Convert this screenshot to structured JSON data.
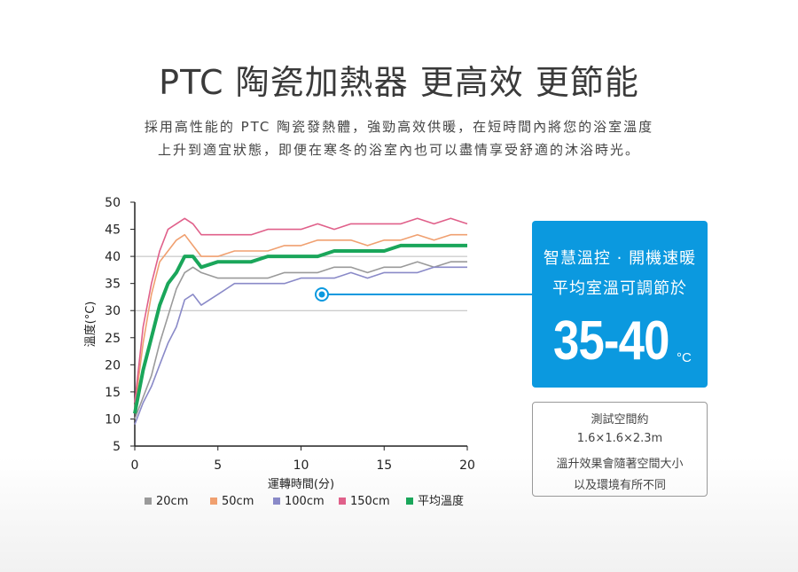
{
  "header": {
    "title": "PTC 陶瓷加熱器 更高效 更節能",
    "subtitle_line1": "採用高性能的 PTC 陶瓷發熱體，強勁高效供暖，在短時間內將您的浴室溫度",
    "subtitle_line2": "上升到適宜狀態，即便在寒冬的浴室內也可以盡情享受舒適的沐浴時光。"
  },
  "callout": {
    "line1": "智慧溫控 · 開機速暖",
    "line2": "平均室溫可調節於",
    "range": "35-40",
    "unit": "°C"
  },
  "test_info": {
    "line1": "測試空間約",
    "line2": "1.6×1.6×2.3m",
    "line3": "溫升效果會隨著空間大小",
    "line4": "以及環境有所不同"
  },
  "chart_data": {
    "type": "line",
    "xlabel": "運轉時間(分)",
    "ylabel": "溫度(°C)",
    "xlim": [
      0,
      20
    ],
    "ylim": [
      5,
      50
    ],
    "xticks": [
      0,
      5,
      10,
      15,
      20
    ],
    "yticks": [
      5,
      10,
      15,
      20,
      25,
      30,
      35,
      40,
      45,
      50
    ],
    "grid_lines_y": [
      30,
      40
    ],
    "legend_position": "bottom",
    "x": [
      0,
      0.5,
      1,
      1.5,
      2,
      2.5,
      3,
      3.5,
      4,
      5,
      6,
      7,
      8,
      9,
      10,
      11,
      12,
      13,
      14,
      15,
      16,
      17,
      18,
      19,
      20
    ],
    "series": [
      {
        "name": "20cm",
        "color": "#9a9a9a",
        "values": [
          10,
          14,
          18,
          24,
          29,
          34,
          37,
          38,
          37,
          36,
          36,
          36,
          36,
          37,
          37,
          37,
          38,
          38,
          37,
          38,
          38,
          39,
          38,
          39,
          39
        ]
      },
      {
        "name": "50cm",
        "color": "#f0a070",
        "values": [
          12,
          24,
          33,
          39,
          41,
          43,
          44,
          42,
          40,
          40,
          41,
          41,
          41,
          42,
          42,
          43,
          43,
          43,
          42,
          43,
          43,
          44,
          43,
          44,
          44
        ]
      },
      {
        "name": "100cm",
        "color": "#8a8ac8",
        "values": [
          9,
          13,
          16,
          20,
          24,
          27,
          32,
          33,
          31,
          33,
          35,
          35,
          35,
          35,
          36,
          36,
          36,
          37,
          36,
          37,
          37,
          37,
          38,
          38,
          38
        ]
      },
      {
        "name": "150cm",
        "color": "#e0608a",
        "values": [
          13,
          27,
          35,
          41,
          45,
          46,
          47,
          46,
          44,
          44,
          44,
          44,
          45,
          45,
          45,
          46,
          45,
          46,
          46,
          46,
          46,
          47,
          46,
          47,
          46
        ]
      },
      {
        "name": "平均溫度",
        "color": "#1aa65a",
        "values": [
          11,
          19,
          25,
          31,
          35,
          37,
          40,
          40,
          38,
          39,
          39,
          39,
          40,
          40,
          40,
          40,
          41,
          41,
          41,
          41,
          42,
          42,
          42,
          42,
          42
        ]
      }
    ]
  }
}
